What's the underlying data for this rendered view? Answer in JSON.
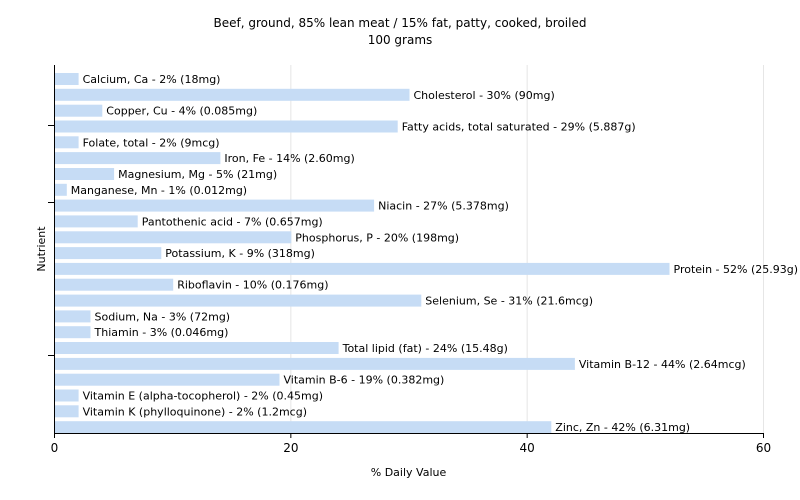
{
  "chart_data": {
    "type": "bar",
    "orientation": "horizontal",
    "title": "Beef, ground, 85% lean meat / 15% fat, patty, cooked, broiled",
    "subtitle": "100 grams",
    "xlabel": "% Daily Value",
    "ylabel": "Nutrient",
    "xlim": [
      0,
      60
    ],
    "xticks": [
      0,
      20,
      40,
      60
    ],
    "grid": true,
    "bar_color": "#c6dcf5",
    "categories": [
      "Calcium, Ca",
      "Cholesterol",
      "Copper, Cu",
      "Fatty acids, total saturated",
      "Folate, total",
      "Iron, Fe",
      "Magnesium, Mg",
      "Manganese, Mn",
      "Niacin",
      "Pantothenic acid",
      "Phosphorus, P",
      "Potassium, K",
      "Protein",
      "Riboflavin",
      "Selenium, Se",
      "Sodium, Na",
      "Thiamin",
      "Total lipid (fat)",
      "Vitamin B-12",
      "Vitamin B-6",
      "Vitamin E (alpha-tocopherol)",
      "Vitamin K (phylloquinone)",
      "Zinc, Zn"
    ],
    "values": [
      2,
      30,
      4,
      29,
      2,
      14,
      5,
      1,
      27,
      7,
      20,
      9,
      52,
      10,
      31,
      3,
      3,
      24,
      44,
      19,
      2,
      2,
      42
    ],
    "labels": [
      "Calcium, Ca - 2% (18mg)",
      "Cholesterol - 30% (90mg)",
      "Copper, Cu - 4% (0.085mg)",
      "Fatty acids, total saturated - 29% (5.887g)",
      "Folate, total - 2% (9mcg)",
      "Iron, Fe - 14% (2.60mg)",
      "Magnesium, Mg - 5% (21mg)",
      "Manganese, Mn - 1% (0.012mg)",
      "Niacin - 27% (5.378mg)",
      "Pantothenic acid - 7% (0.657mg)",
      "Phosphorus, P - 20% (198mg)",
      "Potassium, K - 9% (318mg)",
      "Protein - 52% (25.93g)",
      "Riboflavin - 10% (0.176mg)",
      "Selenium, Se - 31% (21.6mcg)",
      "Sodium, Na - 3% (72mg)",
      "Thiamin - 3% (0.046mg)",
      "Total lipid (fat) - 24% (15.48g)",
      "Vitamin B-12 - 44% (2.64mcg)",
      "Vitamin B-6 - 19% (0.382mg)",
      "Vitamin E (alpha-tocopherol) - 2% (0.45mg)",
      "Vitamin K (phylloquinone) - 2% (1.2mcg)",
      "Zinc, Zn - 42% (6.31mg)"
    ]
  }
}
